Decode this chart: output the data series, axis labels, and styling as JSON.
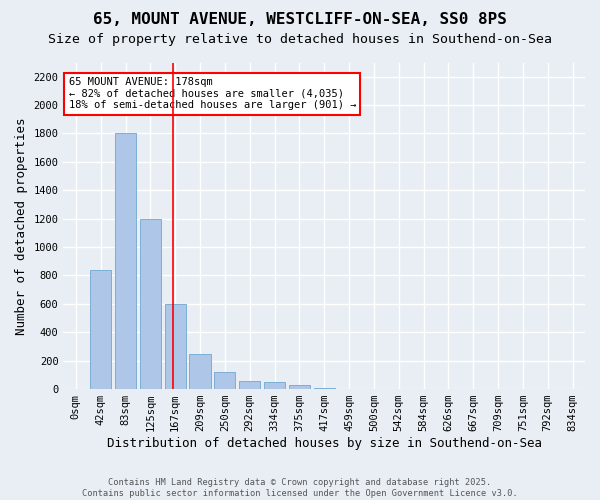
{
  "title": "65, MOUNT AVENUE, WESTCLIFF-ON-SEA, SS0 8PS",
  "subtitle": "Size of property relative to detached houses in Southend-on-Sea",
  "xlabel": "Distribution of detached houses by size in Southend-on-Sea",
  "ylabel": "Number of detached properties",
  "footer_line1": "Contains HM Land Registry data © Crown copyright and database right 2025.",
  "footer_line2": "Contains public sector information licensed under the Open Government Licence v3.0.",
  "bin_labels": [
    "0sqm",
    "42sqm",
    "83sqm",
    "125sqm",
    "167sqm",
    "209sqm",
    "250sqm",
    "292sqm",
    "334sqm",
    "375sqm",
    "417sqm",
    "459sqm",
    "500sqm",
    "542sqm",
    "584sqm",
    "626sqm",
    "667sqm",
    "709sqm",
    "751sqm",
    "792sqm",
    "834sqm"
  ],
  "bar_values": [
    0,
    840,
    1800,
    1200,
    600,
    250,
    120,
    60,
    50,
    30,
    10,
    0,
    0,
    0,
    0,
    0,
    0,
    0,
    0,
    0,
    0
  ],
  "bar_color": "#aec6e8",
  "bar_edge_color": "#7bafd4",
  "background_color": "#e8eef4",
  "grid_color": "#ffffff",
  "red_line_x": 3.93,
  "annotation_text": "65 MOUNT AVENUE: 178sqm\n← 82% of detached houses are smaller (4,035)\n18% of semi-detached houses are larger (901) →",
  "ylim": [
    0,
    2300
  ],
  "yticks": [
    0,
    200,
    400,
    600,
    800,
    1000,
    1200,
    1400,
    1600,
    1800,
    2000,
    2200
  ],
  "title_fontsize": 11.5,
  "subtitle_fontsize": 9.5,
  "tick_fontsize": 7.5,
  "ylabel_fontsize": 9,
  "xlabel_fontsize": 9,
  "annot_fontsize": 7.5
}
